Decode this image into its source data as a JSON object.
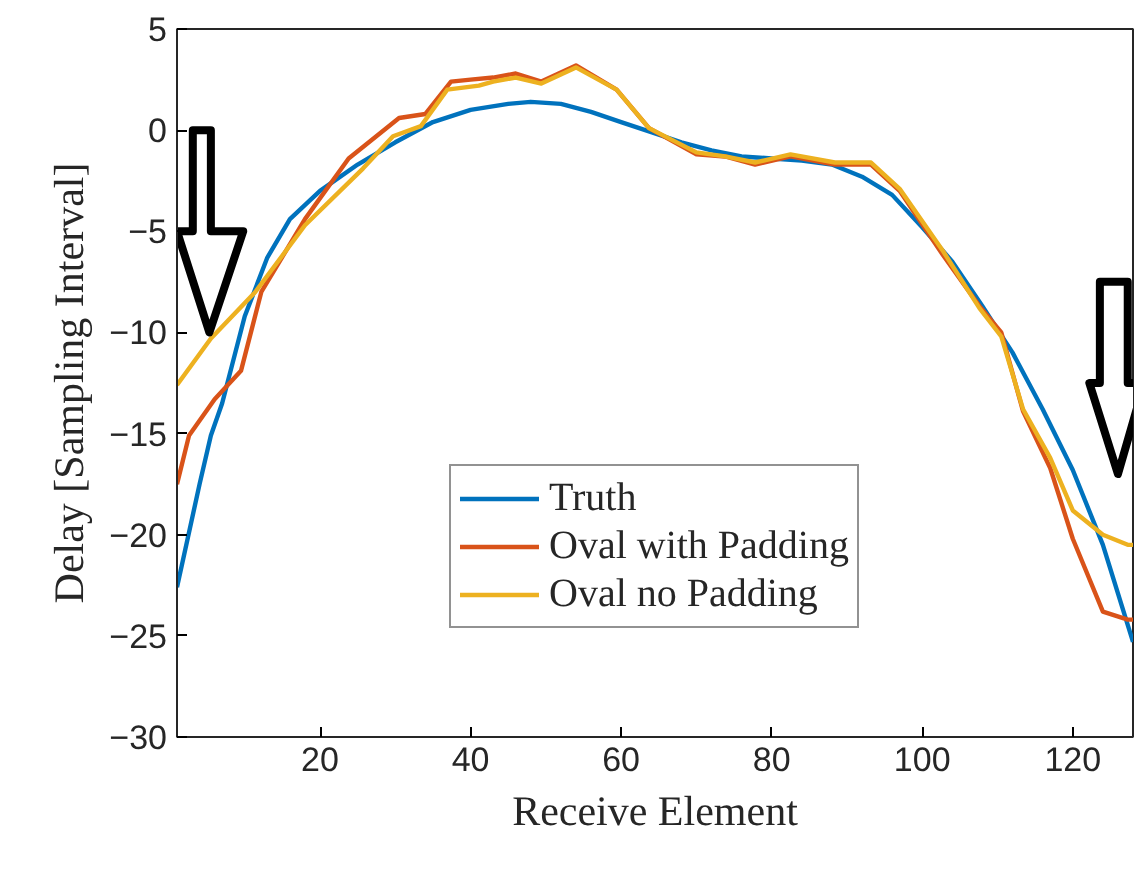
{
  "chart_data": {
    "type": "line",
    "xlabel": "Receive Element",
    "ylabel": "Delay [Sampling Interval]",
    "xlim": [
      1,
      128
    ],
    "ylim": [
      -30,
      5
    ],
    "xticks": [
      20,
      40,
      60,
      80,
      100,
      120
    ],
    "yticks": [
      -30,
      -25,
      -20,
      -15,
      -10,
      -5,
      0,
      5
    ],
    "grid": false,
    "legend": "bottom",
    "line_style": "solid",
    "marker": "none",
    "series": [
      {
        "name": "Truth",
        "color": "#0072bd",
        "x": [
          1,
          4,
          5.5,
          7,
          10,
          13,
          16,
          20,
          25,
          30,
          35,
          40,
          45,
          48,
          52,
          56,
          60,
          64,
          68,
          72,
          76,
          80,
          84,
          88,
          92,
          96,
          100,
          104,
          108,
          112,
          116,
          120,
          124,
          128
        ],
        "values": [
          -22.6,
          -17.5,
          -15.1,
          -13.5,
          -9.2,
          -6.3,
          -4.4,
          -3.0,
          -1.7,
          -0.6,
          0.4,
          1.0,
          1.3,
          1.4,
          1.3,
          0.9,
          0.4,
          -0.1,
          -0.6,
          -1.0,
          -1.3,
          -1.4,
          -1.5,
          -1.7,
          -2.3,
          -3.2,
          -4.8,
          -6.5,
          -8.7,
          -11.0,
          -13.8,
          -16.8,
          -20.5,
          -25.3
        ]
      },
      {
        "name": "Oval with Padding",
        "color": "#d95319",
        "x": [
          1,
          2.6,
          6,
          9.5,
          12.2,
          18,
          23.8,
          30.5,
          34,
          37.4,
          40,
          43,
          46,
          49.4,
          54,
          59.4,
          63.7,
          70,
          73.8,
          77.8,
          82.5,
          88.4,
          93.2,
          97,
          102.8,
          107.6,
          110.5,
          113.4,
          117,
          120,
          124,
          127.3,
          128
        ],
        "values": [
          -17.5,
          -15.1,
          -13.3,
          -11.9,
          -8.0,
          -4.4,
          -1.4,
          0.6,
          0.8,
          2.4,
          2.5,
          2.6,
          2.8,
          2.4,
          3.2,
          2.0,
          0.1,
          -1.2,
          -1.3,
          -1.7,
          -1.3,
          -1.7,
          -1.7,
          -3.0,
          -6.2,
          -8.7,
          -10.0,
          -13.9,
          -16.7,
          -20.2,
          -23.8,
          -24.2,
          -24.2
        ]
      },
      {
        "name": "Oval no Padding",
        "color": "#edb120",
        "x": [
          1,
          5.5,
          11.4,
          18,
          25.7,
          29.7,
          33.4,
          36.9,
          41.1,
          43,
          46,
          49.4,
          54,
          59.4,
          63.7,
          70,
          73.8,
          77.8,
          82.5,
          88.4,
          93.2,
          97,
          102.8,
          107.6,
          110.5,
          113.4,
          117,
          120,
          124,
          127.3,
          128
        ],
        "values": [
          -12.6,
          -10.3,
          -8.0,
          -4.7,
          -1.9,
          -0.3,
          0.2,
          2.0,
          2.2,
          2.4,
          2.6,
          2.3,
          3.1,
          2.0,
          0.1,
          -1.1,
          -1.3,
          -1.6,
          -1.2,
          -1.6,
          -1.6,
          -2.9,
          -6.0,
          -8.8,
          -10.2,
          -13.8,
          -16.2,
          -18.8,
          -20.0,
          -20.5,
          -20.5
        ]
      }
    ]
  }
}
